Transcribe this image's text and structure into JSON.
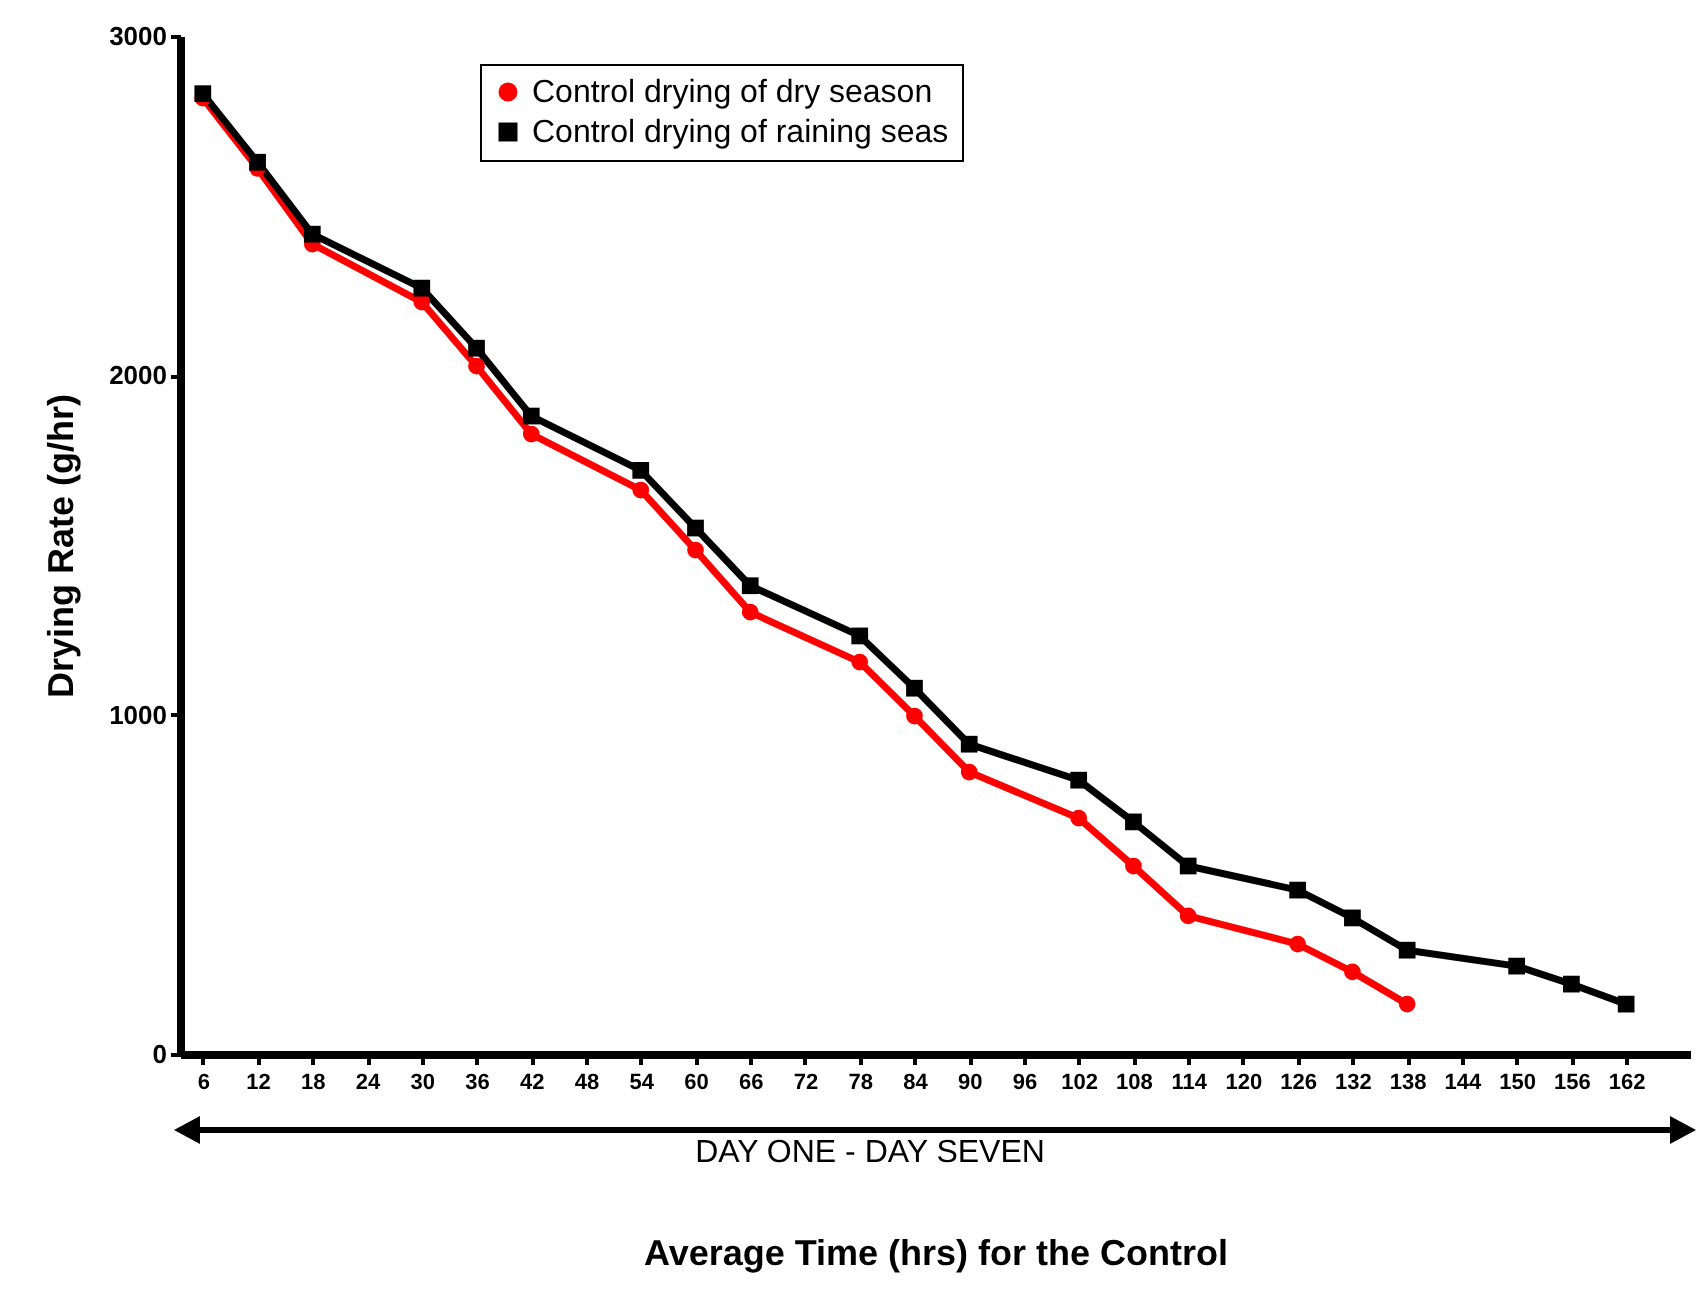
{
  "chart_data": {
    "type": "line",
    "xlabel": "Average Time (hrs) for the Control",
    "ylabel": "Drying Rate (g/hr)",
    "annotations": [
      "DAY ONE - DAY SEVEN"
    ],
    "x": [
      6,
      12,
      18,
      30,
      36,
      42,
      54,
      60,
      66,
      78,
      84,
      90,
      102,
      108,
      114,
      126,
      132,
      138,
      150,
      156,
      162
    ],
    "series": [
      {
        "name": "Control drying of dry season",
        "color": "#ff0000",
        "marker": "circle",
        "values": [
          2817,
          2610,
          2387,
          2216,
          2027,
          1827,
          1662,
          1485,
          1302,
          1155,
          996,
          831,
          695,
          554,
          407,
          324,
          242,
          147,
          null,
          null,
          null
        ]
      },
      {
        "name": "Control drying of raining seas",
        "color": "#000000",
        "marker": "square",
        "values": [
          2830,
          2628,
          2416,
          2257,
          2080,
          1880,
          1720,
          1550,
          1380,
          1232,
          1078,
          913,
          807,
          684,
          554,
          483,
          401,
          306,
          259,
          206,
          147
        ]
      }
    ],
    "xlim": [
      3.5,
      169
    ],
    "xticks": [
      6,
      12,
      18,
      24,
      30,
      36,
      42,
      48,
      54,
      60,
      66,
      72,
      78,
      84,
      90,
      96,
      102,
      108,
      114,
      120,
      126,
      132,
      138,
      144,
      150,
      156,
      162
    ],
    "ylim": [
      0,
      3000
    ],
    "yticks": [
      0,
      1000,
      2000,
      3000
    ],
    "grid": false,
    "legend": "top",
    "line_style": "solid"
  }
}
